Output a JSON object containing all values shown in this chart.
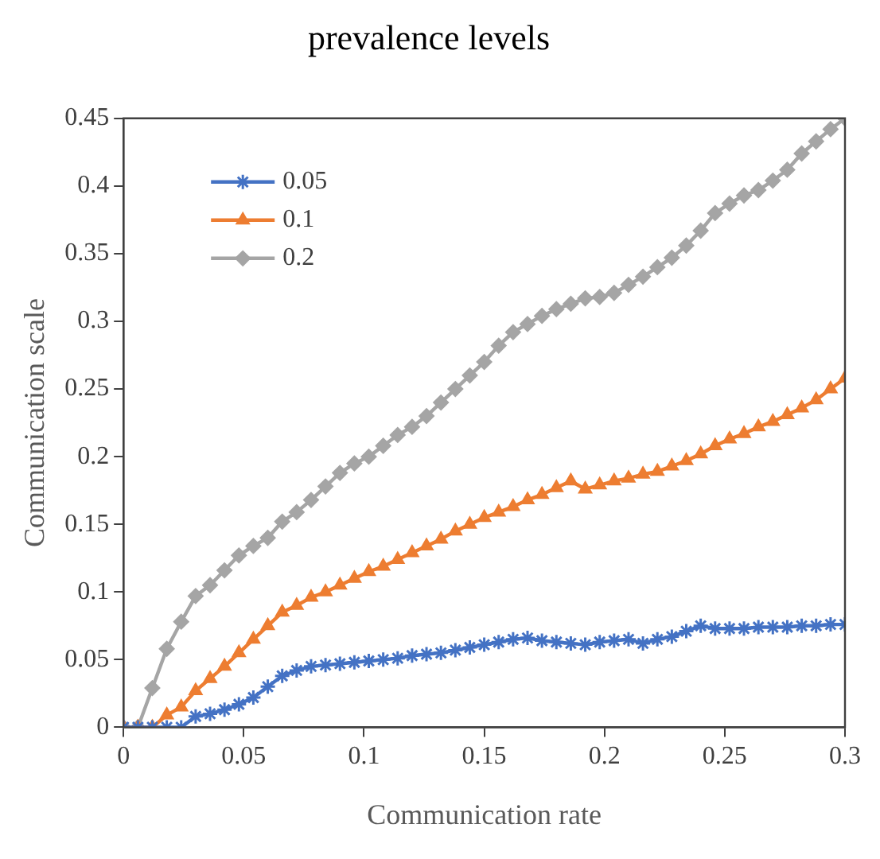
{
  "chart_data": {
    "type": "line",
    "title": "prevalence levels",
    "xlabel": "Communication rate",
    "ylabel": "Communication scale",
    "x": [
      0,
      0.006,
      0.012,
      0.018,
      0.024,
      0.03,
      0.036,
      0.042,
      0.048,
      0.054,
      0.06,
      0.066,
      0.072,
      0.078,
      0.084,
      0.09,
      0.096,
      0.102,
      0.108,
      0.114,
      0.12,
      0.126,
      0.132,
      0.138,
      0.144,
      0.15,
      0.156,
      0.162,
      0.168,
      0.174,
      0.18,
      0.186,
      0.192,
      0.198,
      0.204,
      0.21,
      0.216,
      0.222,
      0.228,
      0.234,
      0.24,
      0.246,
      0.252,
      0.258,
      0.264,
      0.27,
      0.276,
      0.282,
      0.288,
      0.294,
      0.3
    ],
    "series": [
      {
        "name": "0.05",
        "color": "#4472c4",
        "marker": "cross",
        "values": [
          0,
          0,
          0,
          0,
          0,
          0.008,
          0.01,
          0.013,
          0.017,
          0.022,
          0.03,
          0.038,
          0.042,
          0.045,
          0.046,
          0.047,
          0.048,
          0.049,
          0.05,
          0.051,
          0.053,
          0.054,
          0.055,
          0.057,
          0.059,
          0.061,
          0.063,
          0.065,
          0.066,
          0.064,
          0.063,
          0.062,
          0.061,
          0.063,
          0.064,
          0.065,
          0.062,
          0.065,
          0.067,
          0.071,
          0.075,
          0.073,
          0.073,
          0.073,
          0.074,
          0.074,
          0.074,
          0.075,
          0.075,
          0.076,
          0.076
        ]
      },
      {
        "name": "0.1",
        "color": "#ed7d31",
        "marker": "triangle",
        "values": [
          0,
          0,
          0,
          0.009,
          0.015,
          0.027,
          0.036,
          0.045,
          0.055,
          0.065,
          0.075,
          0.085,
          0.09,
          0.096,
          0.1,
          0.105,
          0.11,
          0.115,
          0.119,
          0.124,
          0.129,
          0.134,
          0.139,
          0.145,
          0.15,
          0.155,
          0.159,
          0.163,
          0.168,
          0.172,
          0.177,
          0.182,
          0.176,
          0.179,
          0.182,
          0.184,
          0.187,
          0.189,
          0.193,
          0.197,
          0.202,
          0.208,
          0.213,
          0.217,
          0.222,
          0.226,
          0.231,
          0.236,
          0.242,
          0.25,
          0.258
        ]
      },
      {
        "name": "0.2",
        "color": "#a5a5a5",
        "marker": "diamond",
        "values": [
          0,
          0,
          0.029,
          0.058,
          0.078,
          0.097,
          0.105,
          0.116,
          0.127,
          0.134,
          0.14,
          0.152,
          0.159,
          0.168,
          0.178,
          0.188,
          0.195,
          0.2,
          0.208,
          0.216,
          0.222,
          0.23,
          0.24,
          0.25,
          0.26,
          0.27,
          0.282,
          0.292,
          0.298,
          0.304,
          0.309,
          0.313,
          0.317,
          0.318,
          0.321,
          0.327,
          0.333,
          0.34,
          0.347,
          0.356,
          0.367,
          0.38,
          0.387,
          0.393,
          0.397,
          0.404,
          0.412,
          0.424,
          0.433,
          0.442,
          0.45
        ]
      }
    ],
    "xlim": [
      0,
      0.3
    ],
    "xticks": [
      0,
      0.05,
      0.1,
      0.15,
      0.2,
      0.25,
      0.3
    ],
    "ylim": [
      0,
      0.45
    ],
    "yticks": [
      0,
      0.05,
      0.1,
      0.15,
      0.2,
      0.25,
      0.3,
      0.35,
      0.4,
      0.45
    ],
    "grid": false,
    "legend": "top left",
    "line_style": "solid"
  }
}
